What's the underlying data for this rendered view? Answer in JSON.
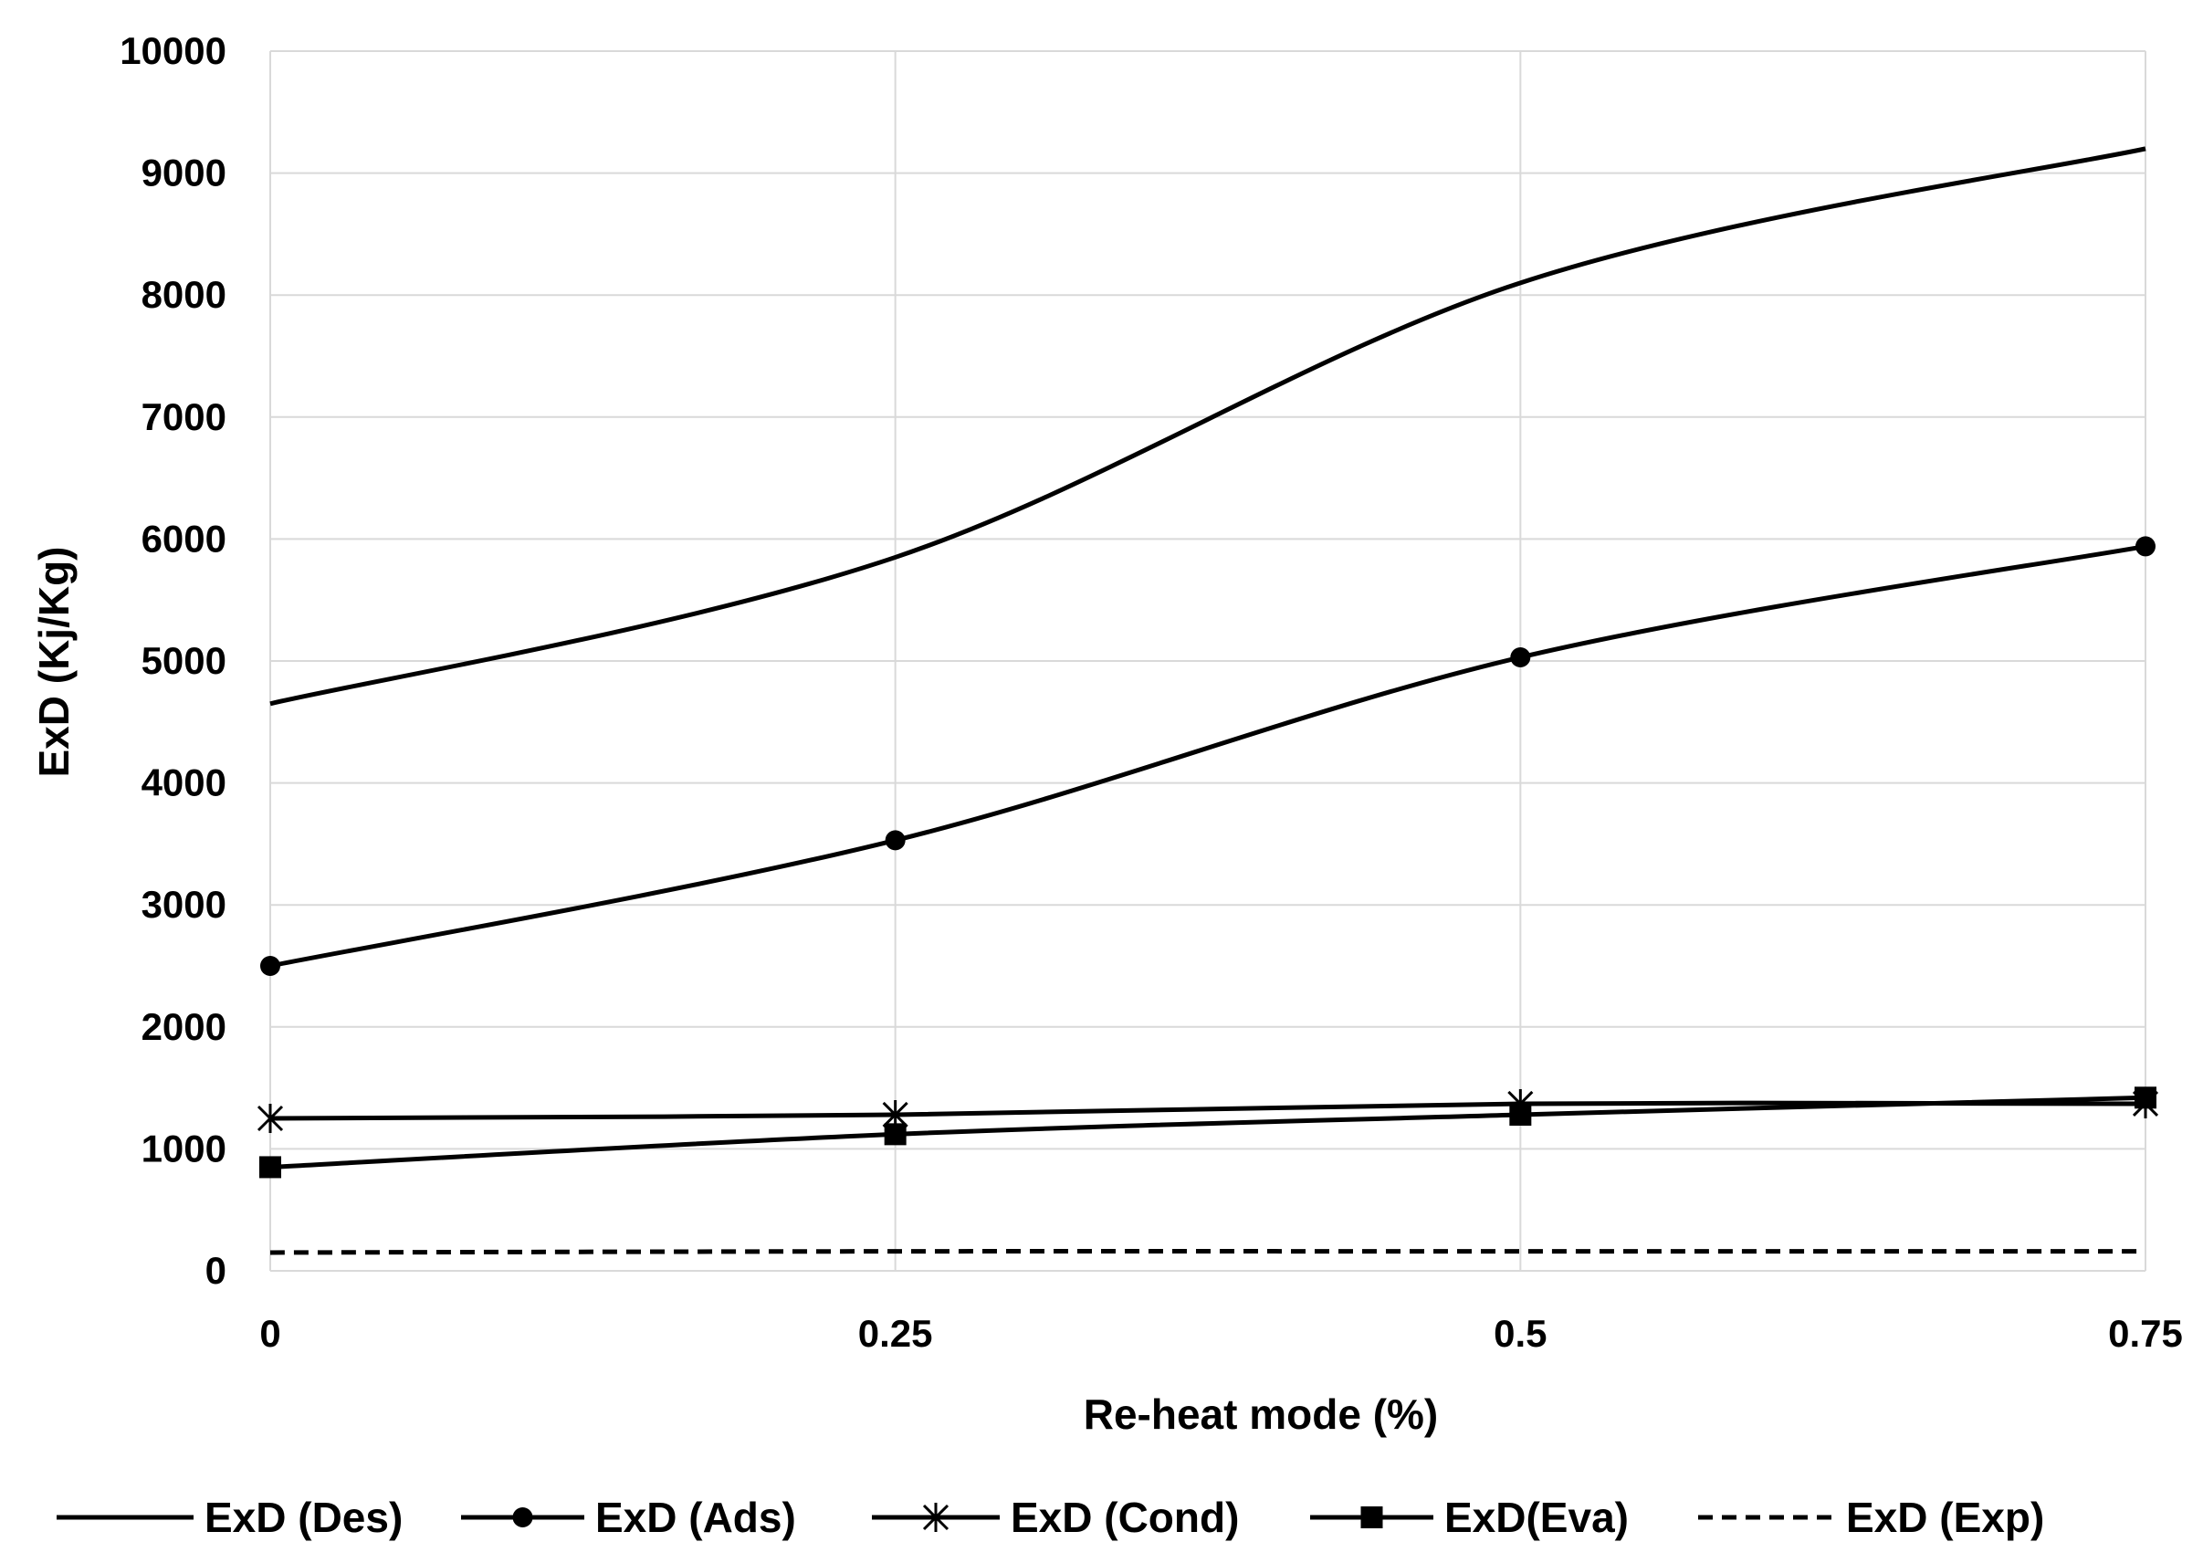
{
  "chart_data": {
    "type": "line",
    "title": "",
    "xlabel": "Re-heat mode (%)",
    "ylabel": "ExD (Kj/Kg)",
    "x": [
      0,
      0.25,
      0.5,
      0.75
    ],
    "x_tick_labels": [
      "0",
      "0.25",
      "0.5",
      "0.75"
    ],
    "ylim": [
      0,
      10000
    ],
    "y_ticks": [
      0,
      1000,
      2000,
      3000,
      4000,
      5000,
      6000,
      7000,
      8000,
      9000,
      10000
    ],
    "grid": true,
    "legend_position": "bottom",
    "series": [
      {
        "name": "ExD (Des)",
        "values": [
          4650,
          5850,
          8100,
          9200
        ],
        "marker": "none",
        "line": "solid",
        "color": "#000000"
      },
      {
        "name": "ExD (Ads)",
        "values": [
          2500,
          3530,
          5030,
          5940
        ],
        "marker": "circle",
        "line": "solid",
        "color": "#000000"
      },
      {
        "name": "ExD (Cond)",
        "values": [
          1250,
          1280,
          1370,
          1370
        ],
        "marker": "star",
        "line": "solid",
        "color": "#000000"
      },
      {
        "name": "ExD(Eva)",
        "values": [
          850,
          1120,
          1280,
          1420
        ],
        "marker": "square",
        "line": "solid",
        "color": "#000000"
      },
      {
        "name": "ExD (Exp)",
        "values": [
          150,
          160,
          160,
          160
        ],
        "marker": "none",
        "line": "dashed",
        "color": "#000000"
      }
    ]
  }
}
